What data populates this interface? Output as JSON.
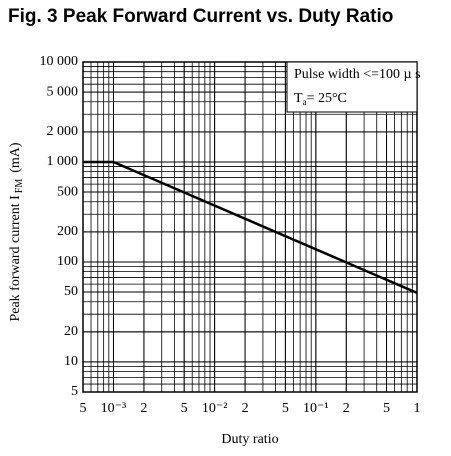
{
  "chart_data": {
    "type": "line",
    "title": "Fig. 3 Peak Forward Current vs. Duty Ratio",
    "xlabel": "Duty ratio",
    "ylabel": {
      "text": "Peak forward current I",
      "subscript": "FM",
      "unit": "(mA)"
    },
    "annotations": [
      {
        "text": "Pulse width <=100 µ s"
      },
      {
        "text": "T",
        "subscript": "a",
        "rest": "= 25°C"
      }
    ],
    "log_x": true,
    "log_y": true,
    "grid": true,
    "xlim": [
      0.0005,
      1
    ],
    "ylim": [
      5,
      10000
    ],
    "xticks": [
      {
        "value": 0.0005,
        "label": "5"
      },
      {
        "value": 0.001,
        "label": "10⁻³"
      },
      {
        "value": 0.002,
        "label": "2"
      },
      {
        "value": 0.005,
        "label": "5"
      },
      {
        "value": 0.01,
        "label": "10⁻²"
      },
      {
        "value": 0.02,
        "label": "2"
      },
      {
        "value": 0.05,
        "label": "5"
      },
      {
        "value": 0.1,
        "label": "10⁻¹"
      },
      {
        "value": 0.2,
        "label": "2"
      },
      {
        "value": 0.5,
        "label": "5"
      },
      1
    ],
    "yticks": [
      5,
      10,
      20,
      50,
      100,
      200,
      500,
      {
        "value": 1000,
        "label": "1 000"
      },
      {
        "value": 2000,
        "label": "2 000"
      },
      {
        "value": 5000,
        "label": "5 000"
      },
      {
        "value": 10000,
        "label": "10 000"
      }
    ],
    "series": [
      {
        "name": null,
        "color": "#000000",
        "x": [
          0.0005,
          0.001,
          1
        ],
        "values": [
          1000,
          1000,
          49
        ]
      }
    ]
  }
}
